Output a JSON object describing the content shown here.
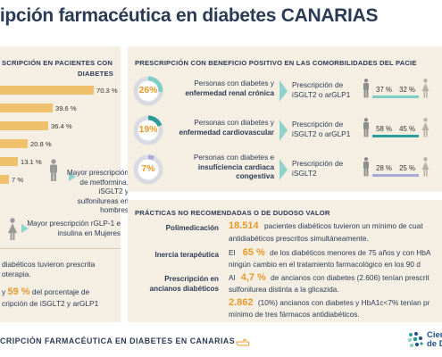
{
  "title": "ripción farmacéutica en diabetes CANARIAS",
  "left_panel": {
    "heading_line1": "SCRIPCIÓN EN PACIENTES CON",
    "heading_line2": "DIABETES",
    "bar_labels": [
      "70.3 %",
      "39.6 %",
      "36.4 %",
      "20.8 %",
      "13.1 %",
      "7 %"
    ],
    "man_text": "Mayor prescripción de metformina, iSGLT2 y sulfonilureas en hombres",
    "woman_text": "Mayor prescripción rGLP-1 e insulina en Mujeres",
    "note_line1": "diabéticos tuvieron prescrita",
    "note_line2": "oterapia.",
    "note2_y": "y",
    "note2_pct": "59 %",
    "note2_line1_rest": "del porcentaje de",
    "note2_line2": "cripción de iSGLT2 y arGLP1"
  },
  "chart_data": {
    "type": "bar",
    "categories": [
      "",
      "",
      "",
      "",
      "",
      ""
    ],
    "values": [
      70.3,
      39.6,
      36.4,
      20.8,
      13.1,
      7
    ],
    "title": "",
    "xlabel": "",
    "ylabel": ""
  },
  "comorbid_panel": {
    "heading": "PRESCRIPCIÓN CON BENEFICIO POSITIVO EN LAS COMORBILIDADES DEL PACIE",
    "rows": [
      {
        "pct": "26%",
        "value": 26,
        "desc_normal": "Personas con diabetes y",
        "desc_bold": "enfermedad renal crónica",
        "presc_line1": "Prescripción de",
        "presc_line2": "iSGLT2 o arGLP1",
        "male": "37 %",
        "female": "32 %",
        "color": "#7ecfc7"
      },
      {
        "pct": "19%",
        "value": 19,
        "desc_normal": "Personas con diabetes y",
        "desc_bold": "enfermedad cardiovascular",
        "presc_line1": "Prescripción de",
        "presc_line2": "iSGLT2 o arGLP1",
        "male": "58 %",
        "female": "45 %",
        "color": "#2a9d9a"
      },
      {
        "pct": "7%",
        "value": 7,
        "desc_normal": "Personas con diabetes e",
        "desc_bold": "insuficiencia cardiaca",
        "desc_bold2": "congestiva",
        "presc_line1": "Prescripción de",
        "presc_line2": "iSGLT2",
        "male": "28 %",
        "female": "25 %",
        "color": "#a7a9d9"
      }
    ]
  },
  "practices_panel": {
    "heading": "PRÁCTICAS NO RECOMENDADAS O DE DUDOSO VALOR",
    "rows": [
      {
        "label": "Polimedicación",
        "big": "18.514",
        "line1": "pacientes diabéticos tuvieron un mínimo de cuat",
        "line2": "antidiabéticos prescritos simultáneamente."
      },
      {
        "label": "Inercia terapéutica",
        "prefix": "El",
        "big": "65 %",
        "line1": "de los diabéticos menores de 75 años y con HbA",
        "line2": "ningún cambio en el tratamiento farmacológico en los 90 d"
      },
      {
        "label": "Prescripción en ancianos diabéticos",
        "label1": "Prescripción en",
        "label2": "ancianos diabéticos",
        "prefix": "Al",
        "big": "4,7 %",
        "line1": "de ancianos con diabetes (2.606) tenían prescrit",
        "line2": "sulfonilurea distinta a la glicazida."
      },
      {
        "label": "",
        "big": "2.862",
        "line1": "(10%) ancianos con diabetes y HbA1c<7% tenían pr",
        "line2": "mínimo de tres fármacos antidiabéticos."
      }
    ]
  },
  "footer": {
    "text": "CRIPCIÓN FARMACÉUTICA EN DIABETES EN CANARIAS",
    "brand_line1": "Cien",
    "brand_line2": "de D"
  }
}
